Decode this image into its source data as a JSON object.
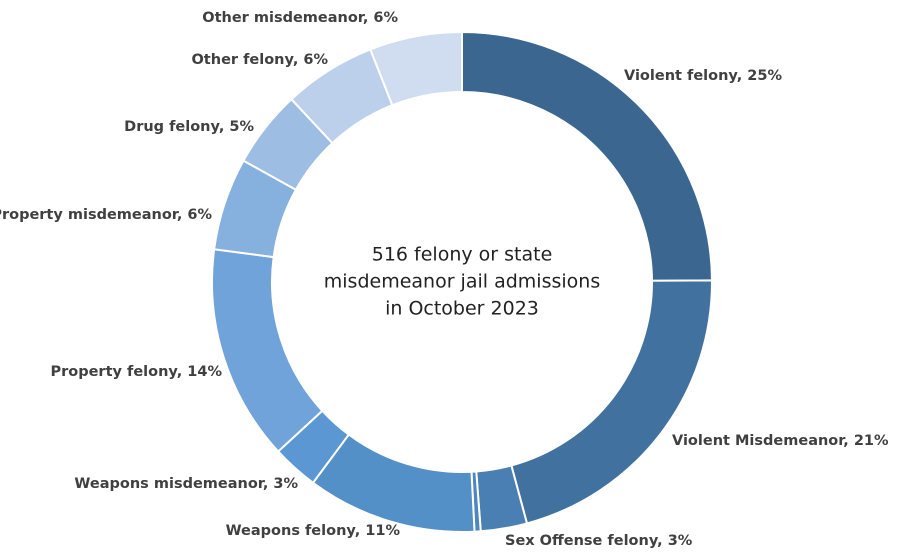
{
  "chart_data": {
    "type": "donut",
    "center_text": [
      "516 felony or state",
      "misdemeanor jail admissions",
      "in October 2023"
    ],
    "categories": [
      "Violent felony, 25%",
      "Violent Misdemeanor, 21%",
      "Sex Offense felony, 3%",
      null,
      "Weapons felony, 11%",
      "Weapons misdemeanor, 3%",
      "Property felony, 14%",
      "Property misdemeanor, 6%",
      "Drug felony, 5%",
      "Other felony, 6%",
      "Other misdemeanor, 6%"
    ],
    "values": [
      25,
      21,
      3,
      0.4,
      11,
      3,
      14,
      6,
      5,
      6,
      6
    ],
    "colors": [
      "#3a6690",
      "#41729f",
      "#4a7fb3",
      "#4e86bd",
      "#5490c8",
      "#5b98d3",
      "#6fa3da",
      "#86b0de",
      "#9dbde3",
      "#bcd0ec",
      "#d0dcf0"
    ]
  }
}
